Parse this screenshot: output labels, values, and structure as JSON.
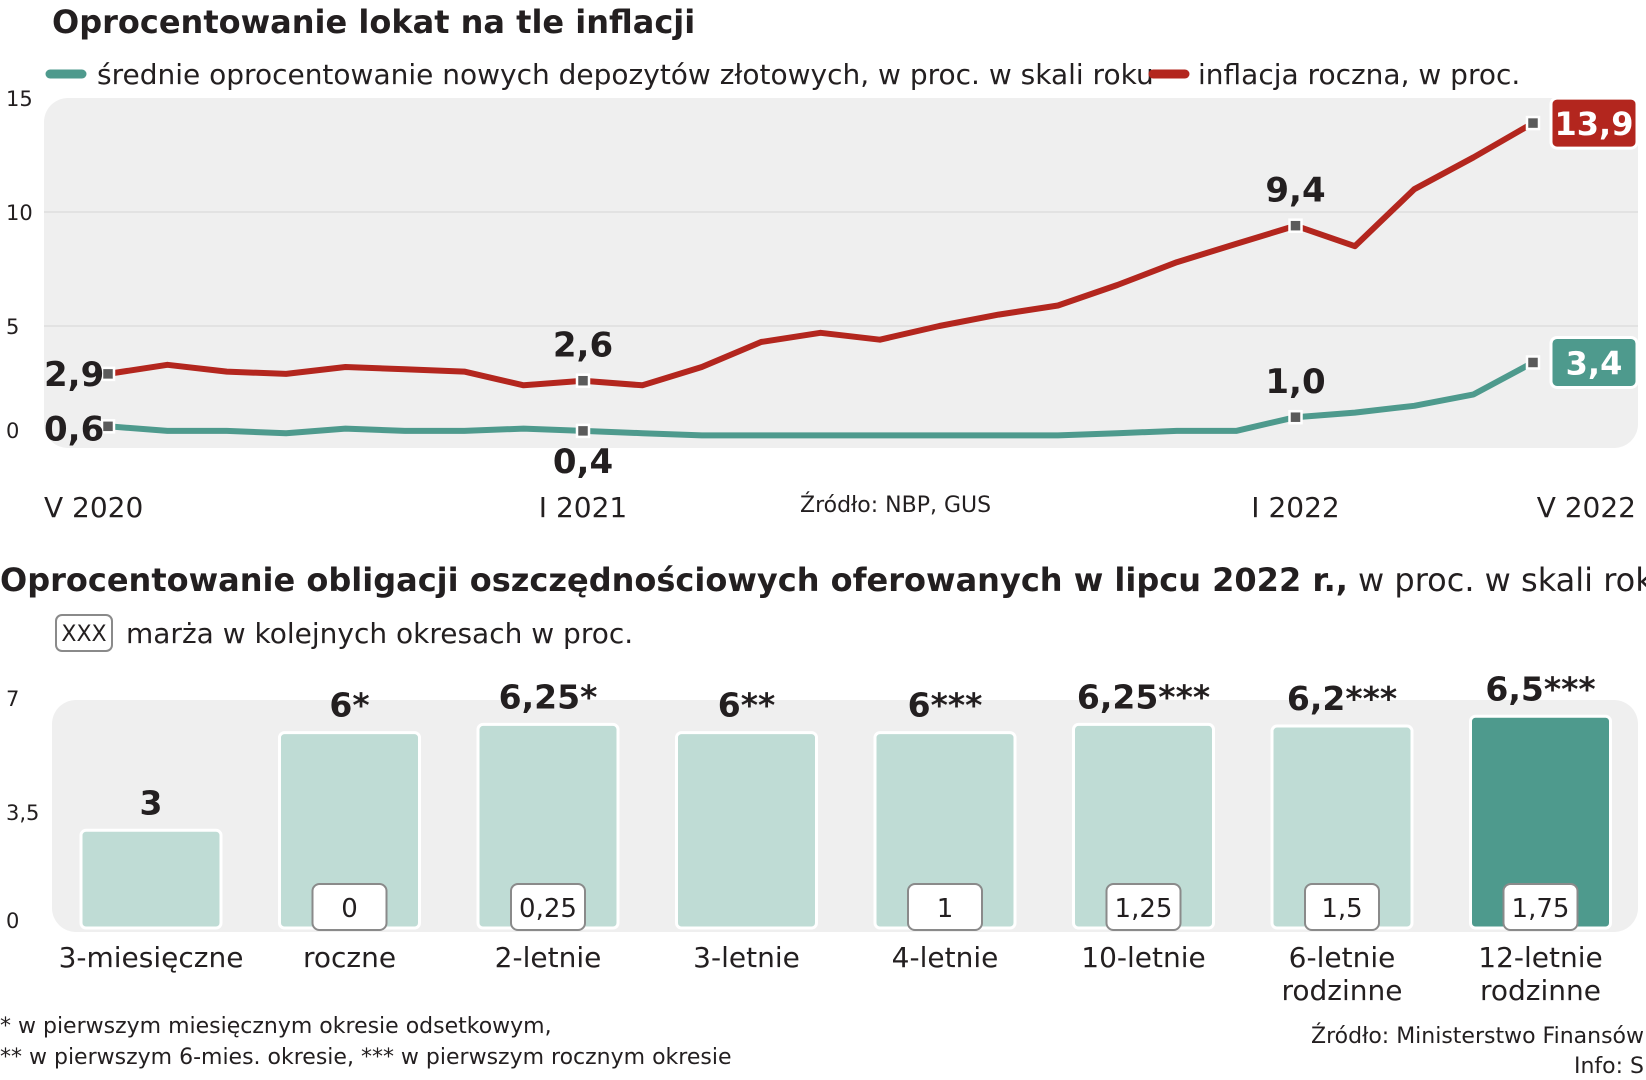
{
  "colors": {
    "deposit": "#4e9a8d",
    "inflation": "#b3261e",
    "bar_light": "#bfdcd5",
    "bar_dark": "#4e9a8d",
    "panel_bg": "#efefef",
    "marker": "#5b5b5b"
  },
  "chart_data": [
    {
      "type": "line",
      "title": "Oprocentowanie lokat na tle inflacji",
      "ylim": [
        0,
        15
      ],
      "yticks": [
        "0",
        "5",
        "10",
        "15"
      ],
      "grid": true,
      "legend_position": "top",
      "x": [
        "V 2020",
        "VI 2020",
        "VII 2020",
        "VIII 2020",
        "IX 2020",
        "X 2020",
        "XI 2020",
        "XII 2020",
        "I 2021",
        "II 2021",
        "III 2021",
        "IV 2021",
        "V 2021",
        "VI 2021",
        "VII 2021",
        "VIII 2021",
        "IX 2021",
        "X 2021",
        "XI 2021",
        "XII 2021",
        "I 2022",
        "II 2022",
        "III 2022",
        "IV 2022",
        "V 2022"
      ],
      "xtick_labels": [
        {
          "index": 0,
          "label": "V 2020"
        },
        {
          "index": 8,
          "label": "I 2021"
        },
        {
          "index": 20,
          "label": "I 2022"
        },
        {
          "index": 24,
          "label": "V 2022"
        }
      ],
      "series": [
        {
          "name": "średnie oprocentowanie nowych depozytów złotowych, w proc. w skali roku",
          "key": "deposit",
          "values": [
            0.6,
            0.4,
            0.4,
            0.3,
            0.5,
            0.4,
            0.4,
            0.5,
            0.4,
            0.3,
            0.2,
            0.2,
            0.2,
            0.2,
            0.2,
            0.2,
            0.2,
            0.3,
            0.4,
            0.4,
            1.0,
            1.2,
            1.5,
            2.0,
            3.4
          ]
        },
        {
          "name": "inflacja roczna, w proc.",
          "key": "inflation",
          "values": [
            2.9,
            3.3,
            3.0,
            2.9,
            3.2,
            3.1,
            3.0,
            2.4,
            2.6,
            2.4,
            3.2,
            4.3,
            4.7,
            4.4,
            5.0,
            5.5,
            5.9,
            6.8,
            7.8,
            8.6,
            9.4,
            8.5,
            11.0,
            12.4,
            13.9
          ]
        }
      ],
      "point_labels": [
        {
          "series": "inflation",
          "index": 0,
          "text": "2,9"
        },
        {
          "series": "inflation",
          "index": 8,
          "text": "2,6"
        },
        {
          "series": "inflation",
          "index": 20,
          "text": "9,4"
        },
        {
          "series": "inflation",
          "index": 24,
          "text": "13,9",
          "boxed": true
        },
        {
          "series": "deposit",
          "index": 0,
          "text": "0,6"
        },
        {
          "series": "deposit",
          "index": 8,
          "text": "0,4"
        },
        {
          "series": "deposit",
          "index": 20,
          "text": "1,0"
        },
        {
          "series": "deposit",
          "index": 24,
          "text": "3,4",
          "boxed": true
        }
      ],
      "source": "Źródło: NBP, GUS"
    },
    {
      "type": "bar",
      "title": "Oprocentowanie obligacji oszczędnościowych oferowanych w lipcu 2022 r.,",
      "title_suffix": " w proc. w skali roku",
      "legend_box": "XXX",
      "legend_text": "marża w kolejnych okresach w proc.",
      "ylim": [
        0,
        7
      ],
      "yticks": [
        "0",
        "3,5",
        "7"
      ],
      "categories": [
        "3-miesięczne",
        "roczne",
        "2-letnie",
        "3-letnie",
        "4-letnie",
        "10-letnie",
        "6-letnie rodzinne",
        "12-letnie rodzinne"
      ],
      "category_lines": [
        [
          "3-miesięczne"
        ],
        [
          "roczne"
        ],
        [
          "2-letnie"
        ],
        [
          "3-letnie"
        ],
        [
          "4-letnie"
        ],
        [
          "10-letnie"
        ],
        [
          "6-letnie",
          "rodzinne"
        ],
        [
          "12-letnie",
          "rodzinne"
        ]
      ],
      "values": [
        3,
        6,
        6.25,
        6,
        6,
        6.25,
        6.2,
        6.5
      ],
      "value_labels": [
        "3",
        "6*",
        "6,25*",
        "6**",
        "6***",
        "6,25***",
        "6,2***",
        "6,5***"
      ],
      "margins": [
        null,
        "0",
        "0,25",
        null,
        "1",
        "1,25",
        "1,5",
        "1,75"
      ],
      "highlight_index": 7,
      "footnotes": [
        "* w pierwszym miesięcznym okresie odsetkowym,",
        "** w pierwszym 6-mies. okresie, *** w pierwszym rocznym okresie"
      ],
      "source": "Źródło: Ministerstwo Finansów",
      "info": "Info: S"
    }
  ]
}
